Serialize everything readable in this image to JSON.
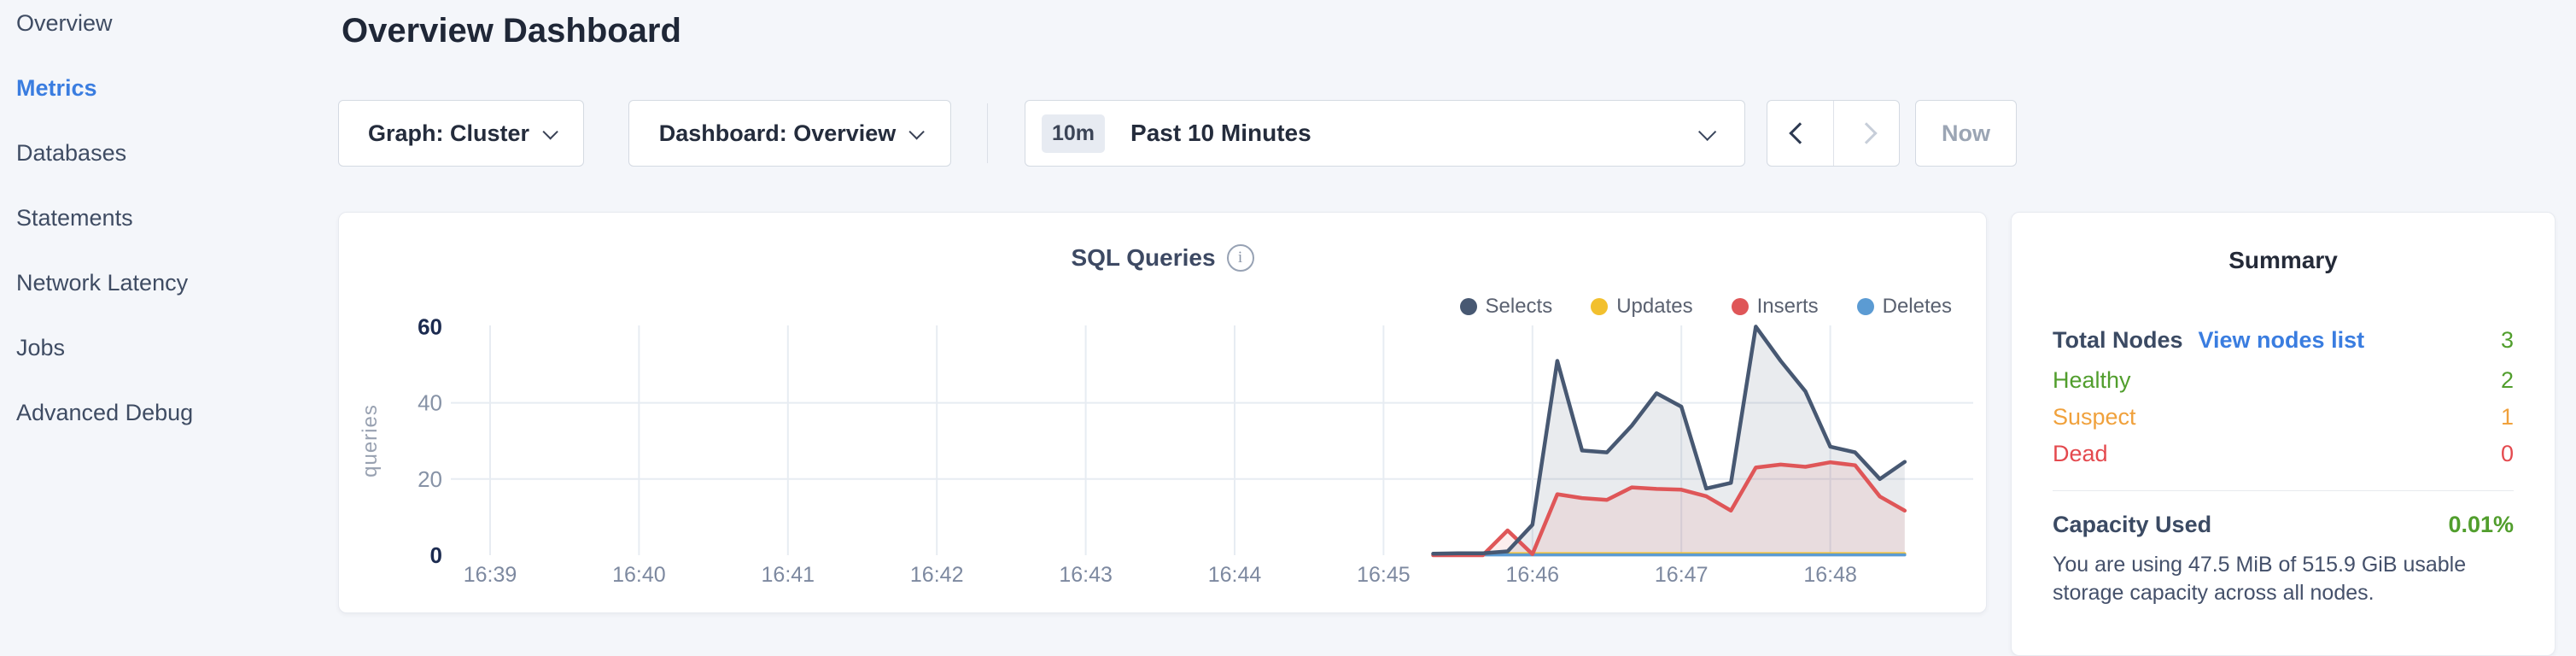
{
  "sidebar": {
    "items": [
      {
        "label": "Overview",
        "active": false
      },
      {
        "label": "Metrics",
        "active": true
      },
      {
        "label": "Databases",
        "active": false
      },
      {
        "label": "Statements",
        "active": false
      },
      {
        "label": "Network Latency",
        "active": false
      },
      {
        "label": "Jobs",
        "active": false
      },
      {
        "label": "Advanced Debug",
        "active": false
      }
    ]
  },
  "header": {
    "title": "Overview Dashboard"
  },
  "controls": {
    "graph_dropdown": "Graph: Cluster",
    "dashboard_dropdown": "Dashboard: Overview",
    "time_badge": "10m",
    "time_label": "Past 10 Minutes",
    "now_label": "Now"
  },
  "chart_data": {
    "type": "area",
    "title": "SQL Queries",
    "ylabel": "queries",
    "xlabel": "",
    "grid": true,
    "legend_position": "top-right",
    "ylim": [
      0,
      62
    ],
    "y_ticks": [
      0,
      20,
      40,
      60
    ],
    "y_ticks_emphasized": [
      0,
      60
    ],
    "x_ticks": [
      "16:39",
      "16:40",
      "16:41",
      "16:42",
      "16:43",
      "16:44",
      "16:45",
      "16:46",
      "16:47",
      "16:48"
    ],
    "x": [
      "16:45:20",
      "16:45:30",
      "16:45:40",
      "16:45:50",
      "16:46:00",
      "16:46:10",
      "16:46:20",
      "16:46:30",
      "16:46:40",
      "16:46:50",
      "16:47:00",
      "16:47:10",
      "16:47:20",
      "16:47:30",
      "16:47:40",
      "16:47:50",
      "16:48:00",
      "16:48:10",
      "16:48:20",
      "16:48:30"
    ],
    "series": [
      {
        "name": "Selects",
        "color": "#475872",
        "fill": "rgba(71,88,114,0.12)",
        "values": [
          0.4,
          0.5,
          0.5,
          1,
          8,
          51,
          27.5,
          27,
          34,
          42.5,
          39,
          17.5,
          19,
          60,
          51,
          43,
          28.5,
          27,
          20,
          24.5
        ]
      },
      {
        "name": "Updates",
        "color": "#f2c02e",
        "fill": null,
        "values": [
          0.2,
          0.3,
          0.3,
          0.4,
          0.4,
          0.4,
          0.4,
          0.4,
          0.4,
          0.4,
          0.4,
          0.4,
          0.4,
          0.4,
          0.4,
          0.4,
          0.4,
          0.4,
          0.4,
          0.4
        ]
      },
      {
        "name": "Inserts",
        "color": "#df5658",
        "fill": "rgba(223,86,88,0.10)",
        "values": [
          0,
          0,
          0,
          6.5,
          0.3,
          16,
          15,
          14.5,
          17.8,
          17.4,
          17.2,
          15.5,
          11.7,
          23,
          23.8,
          23.2,
          24.4,
          23.6,
          15.4,
          11.7
        ]
      },
      {
        "name": "Deletes",
        "color": "#5b9bd3",
        "fill": null,
        "values": [
          0.1,
          0.1,
          0.1,
          0.1,
          0.1,
          0.1,
          0.1,
          0.1,
          0.1,
          0.1,
          0.1,
          0.1,
          0.1,
          0.1,
          0.1,
          0.1,
          0.1,
          0.1,
          0.1,
          0.1
        ]
      }
    ]
  },
  "summary": {
    "title": "Summary",
    "total_nodes_label": "Total Nodes",
    "view_nodes_link": "View nodes list",
    "total_nodes_value": "3",
    "total_nodes_color": "#519e2d",
    "rows": [
      {
        "label": "Healthy",
        "value": "2",
        "color": "#519e2d"
      },
      {
        "label": "Suspect",
        "value": "1",
        "color": "#f0a13c"
      },
      {
        "label": "Dead",
        "value": "0",
        "color": "#e4494e"
      }
    ],
    "capacity_label": "Capacity Used",
    "capacity_value": "0.01%",
    "capacity_color": "#519e2d",
    "capacity_description": "You are using 47.5 MiB of 515.9 GiB usable storage capacity across all nodes."
  },
  "colors": {
    "accent_blue": "#3a7de0",
    "background": "#f4f6fa",
    "grid": "#e7ecf2",
    "tick_gray": "#8692a6",
    "tick_dark": "#1c2b50"
  }
}
